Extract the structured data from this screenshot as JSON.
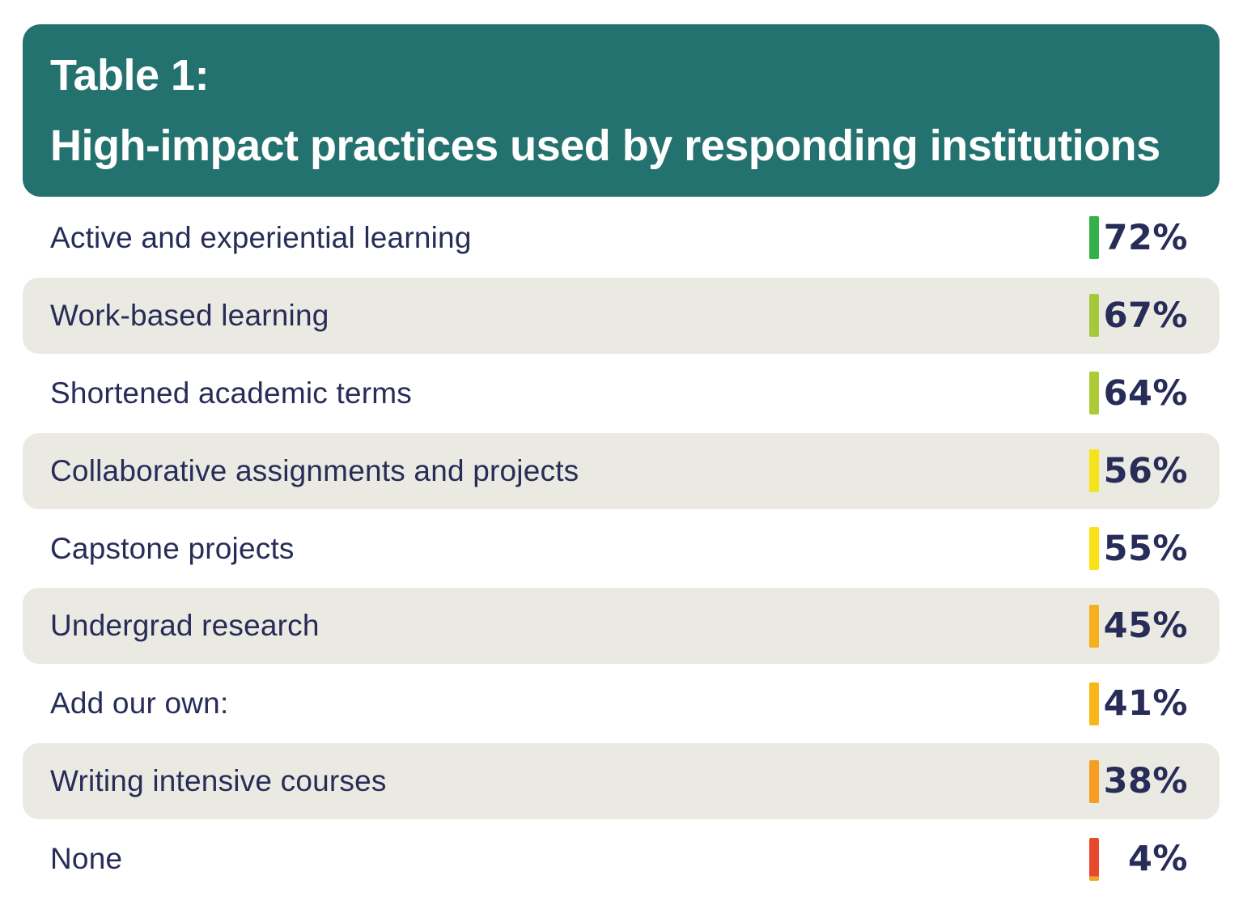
{
  "header": {
    "title_line1": "Table 1:",
    "title_line2": "High-impact practices used by responding institutions"
  },
  "colors": {
    "page_bg": "#ffffff",
    "header_bg": "#24726f",
    "header_text": "#ffffff",
    "row_shade": "#ebeae2",
    "text_navy": "#272c58"
  },
  "rows": [
    {
      "label": "Active and experiential learning",
      "value_label": "72%",
      "marker_color": "#35b14b",
      "shaded": false
    },
    {
      "label": "Work-based learning",
      "value_label": "67%",
      "marker_color": "#a6c93c",
      "shaded": true
    },
    {
      "label": "Shortened academic terms",
      "value_label": "64%",
      "marker_color": "#adcb37",
      "shaded": false
    },
    {
      "label": "Collaborative assignments and projects",
      "value_label": "56%",
      "marker_color": "#f5e41b",
      "shaded": true
    },
    {
      "label": "Capstone projects",
      "value_label": "55%",
      "marker_color": "#fae214",
      "shaded": false
    },
    {
      "label": "Undergrad research",
      "value_label": "45%",
      "marker_color": "#f5b01e",
      "shaded": true
    },
    {
      "label": "Add our own:",
      "value_label": "41%",
      "marker_color": "#f9b618",
      "shaded": false
    },
    {
      "label": "Writing intensive courses",
      "value_label": "38%",
      "marker_color": "#f59e21",
      "shaded": true
    },
    {
      "label": "None",
      "value_label": "4%",
      "marker_color": "#e8492c",
      "marker_tip_color": "#f0a62b",
      "shaded": false
    }
  ],
  "chart_data": {
    "type": "table",
    "title": "Table 1: High-impact practices used by responding institutions",
    "categories": [
      "Active and experiential learning",
      "Work-based learning",
      "Shortened academic terms",
      "Collaborative assignments and projects",
      "Capstone projects",
      "Undergrad research",
      "Add our own:",
      "Writing intensive courses",
      "None"
    ],
    "values": [
      72,
      67,
      64,
      56,
      55,
      45,
      41,
      38,
      4
    ],
    "unit": "%",
    "marker_colors": [
      "#35b14b",
      "#a6c93c",
      "#adcb37",
      "#f5e41b",
      "#fae214",
      "#f5b01e",
      "#f9b618",
      "#f59e21",
      "#e8492c"
    ],
    "legend": "off",
    "layout_hint": "ranked list, value markers color-coded green (high) to red (low), alternating row shading"
  }
}
